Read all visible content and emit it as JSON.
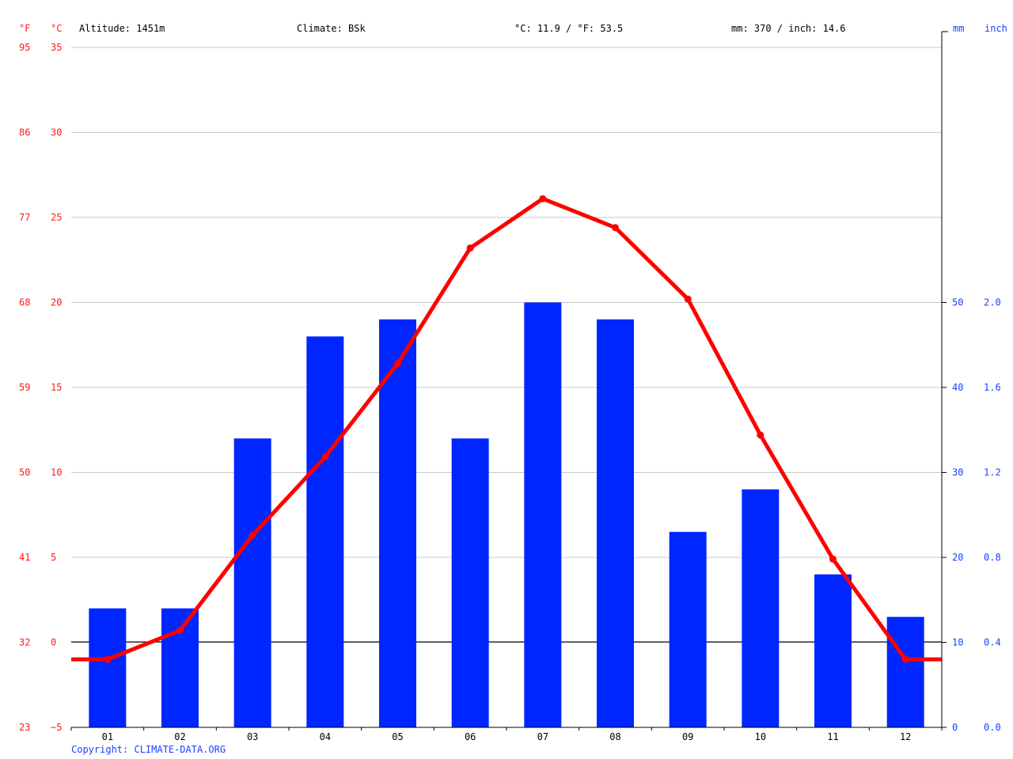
{
  "header": {
    "f_unit": "°F",
    "c_unit": "°C",
    "altitude": "Altitude: 1451m",
    "climate": "Climate: BSk",
    "avg_temp": "°C: 11.9 / °F: 53.5",
    "precip_total": "mm: 370 / inch: 14.6",
    "mm_unit": "mm",
    "inch_unit": "inch"
  },
  "copyright": "Copyright: CLIMATE-DATA.ORG",
  "colors": {
    "temperature": "#ff0000",
    "precipitation": "#0026ff",
    "axis_temp": "#ff1a1a",
    "axis_precip": "#1a40ff"
  },
  "chart_data": {
    "type": "bar",
    "title": "",
    "categories": [
      "01",
      "02",
      "03",
      "04",
      "05",
      "06",
      "07",
      "08",
      "09",
      "10",
      "11",
      "12"
    ],
    "series": [
      {
        "name": "",
        "kind": "bar",
        "unit": "mm",
        "values": [
          14,
          14,
          34,
          46,
          48,
          34,
          50,
          48,
          23,
          28,
          18,
          13
        ]
      },
      {
        "name": "",
        "kind": "line",
        "unit": "°C",
        "values": [
          -1.0,
          0.7,
          6.3,
          10.9,
          16.4,
          23.2,
          26.1,
          24.4,
          20.2,
          12.2,
          4.9,
          -1.0
        ]
      }
    ],
    "y_left_c": {
      "ticks": [
        35,
        30,
        25,
        20,
        15,
        10,
        5,
        0,
        -5
      ],
      "range": [
        -5,
        35
      ]
    },
    "y_left_f": {
      "ticks": [
        "95",
        "86",
        "77",
        "68",
        "59",
        "50",
        "41",
        "32",
        "23"
      ]
    },
    "y_right_mm": {
      "ticks": [
        50,
        40,
        30,
        20,
        10,
        0
      ],
      "range": [
        0,
        80
      ]
    },
    "y_right_inch": {
      "ticks": [
        "2.0",
        "1.6",
        "1.2",
        "0.8",
        "0.4",
        "0.0"
      ]
    },
    "grid": true,
    "zero_line": true
  }
}
